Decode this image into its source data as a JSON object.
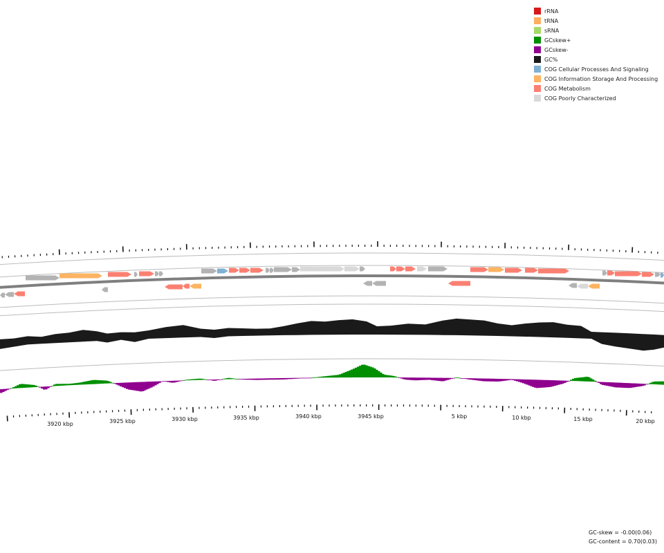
{
  "legend": {
    "items": [
      {
        "key": "rRNA",
        "label": "rRNA",
        "color": "#d7191c"
      },
      {
        "key": "tRNA",
        "label": "tRNA",
        "color": "#fdae61"
      },
      {
        "key": "sRNA",
        "label": "sRNA",
        "color": "#a6d96a"
      },
      {
        "key": "gcpos",
        "label": "GCskew+",
        "color": "#008f00"
      },
      {
        "key": "gcneg",
        "label": "GCskew-",
        "color": "#8f008f"
      },
      {
        "key": "gc",
        "label": "GC%",
        "color": "#1a1a1a"
      },
      {
        "key": "cogcps",
        "label": "COG Cellular Processes And Signaling",
        "color": "#80b1d3"
      },
      {
        "key": "cogisp",
        "label": "COG Information Storage And Processing",
        "color": "#fdb462"
      },
      {
        "key": "cogmet",
        "label": "COG Metabolism",
        "color": "#fb8072"
      },
      {
        "key": "cogpc",
        "label": "COG Poorly Characterized",
        "color": "#d9d9d9"
      }
    ]
  },
  "stats": {
    "gc_skew": "GC-skew = -0.00(0.06)",
    "gc_content": "GC-content = 0.70(0.03)"
  },
  "colors": {
    "unassigned": "#b3b3b3",
    "backbone": "#7f7f7f",
    "track_line": "#bbbbbb",
    "gc": "#1a1a1a",
    "skew_pos": "#008f00",
    "skew_neg": "#8f008f",
    "cps": "#80b1d3",
    "isp": "#fdb462",
    "met": "#fb8072",
    "pc": "#d9d9d9"
  },
  "chart_data": {
    "type": "circular-genome-map",
    "scale_labels": [
      "3920 kbp",
      "3925 kbp",
      "3930 kbp",
      "3935 kbp",
      "3940 kbp",
      "3945 kbp",
      "5 kbp",
      "10 kbp",
      "15 kbp",
      "20 kbp"
    ],
    "gc_content_mean": 0.7,
    "gc_content_sd": 0.03,
    "gc_skew_mean": -0.0,
    "gc_skew_sd": 0.06
  }
}
